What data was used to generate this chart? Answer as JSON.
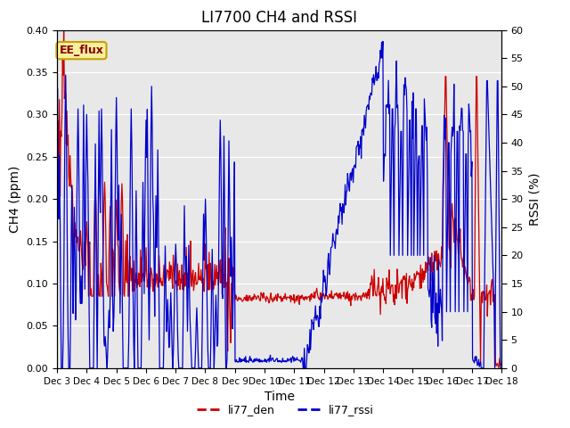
{
  "title": "LI7700 CH4 and RSSI",
  "xlabel": "Time",
  "ylabel_left": "CH4 (ppm)",
  "ylabel_right": "RSSI (%)",
  "ylim_left": [
    0.0,
    0.4
  ],
  "ylim_right": [
    0,
    60
  ],
  "xlim": [
    0,
    15
  ],
  "xtick_labels": [
    "Dec 3",
    "Dec 4",
    "Dec 5",
    "Dec 6",
    "Dec 7",
    "Dec 8",
    "Dec 9",
    "Dec 10",
    "Dec 11",
    "Dec 12",
    "Dec 13",
    "Dec 14",
    "Dec 15",
    "Dec 16",
    "Dec 17",
    "Dec 18"
  ],
  "yticks_left": [
    0.0,
    0.05,
    0.1,
    0.15,
    0.2,
    0.25,
    0.3,
    0.35,
    0.4
  ],
  "yticks_right": [
    0,
    5,
    10,
    15,
    20,
    25,
    30,
    35,
    40,
    45,
    50,
    55,
    60
  ],
  "annotation_text": "EE_flux",
  "annotation_bg": "#f5f0a0",
  "annotation_border": "#c8a000",
  "legend_labels": [
    "li77_den",
    "li77_rssi"
  ],
  "line_red": "#cc0000",
  "line_blue": "#0000cc",
  "bg_color": "#e8e8e8",
  "fig_bg": "#ffffff",
  "title_fontsize": 12,
  "axis_label_fontsize": 10,
  "tick_fontsize": 8
}
